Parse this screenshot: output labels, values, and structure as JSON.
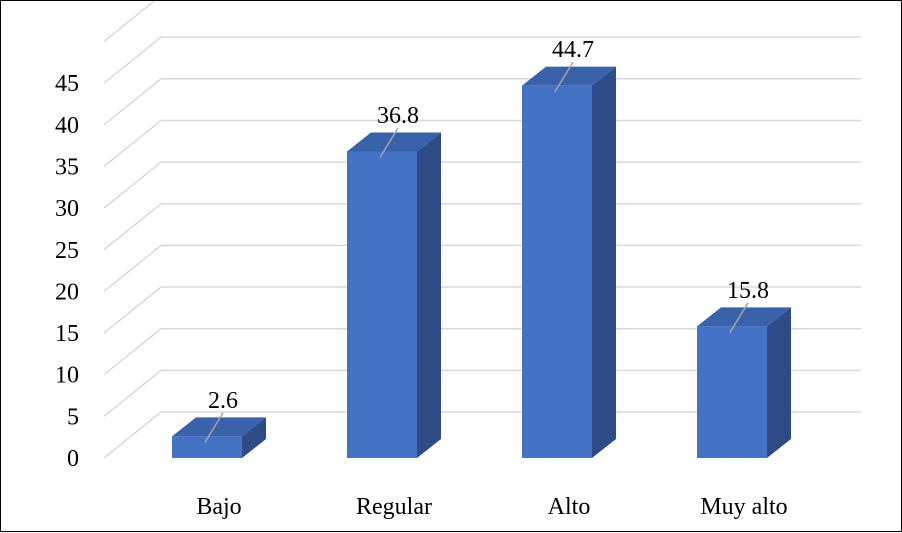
{
  "chart_data": {
    "type": "bar",
    "style": "3d-column",
    "categories": [
      "Bajo",
      "Regular",
      "Alto",
      "Muy alto"
    ],
    "values": [
      2.6,
      36.8,
      44.7,
      15.8
    ],
    "data_labels": [
      "2.6",
      "36.8",
      "44.7",
      "15.8"
    ],
    "y_ticks": [
      0,
      5,
      10,
      15,
      20,
      25,
      30,
      35,
      40,
      45
    ],
    "ylim": [
      0,
      50
    ],
    "grid": true,
    "legend": "none",
    "title": "",
    "xlabel": "",
    "ylabel": ""
  },
  "colors": {
    "bar_front": "#4472C4",
    "bar_side": "#2E4B85",
    "bar_top": "#3A62AA",
    "grid": "#D9D9D9",
    "leader": "#A6A6A6"
  }
}
